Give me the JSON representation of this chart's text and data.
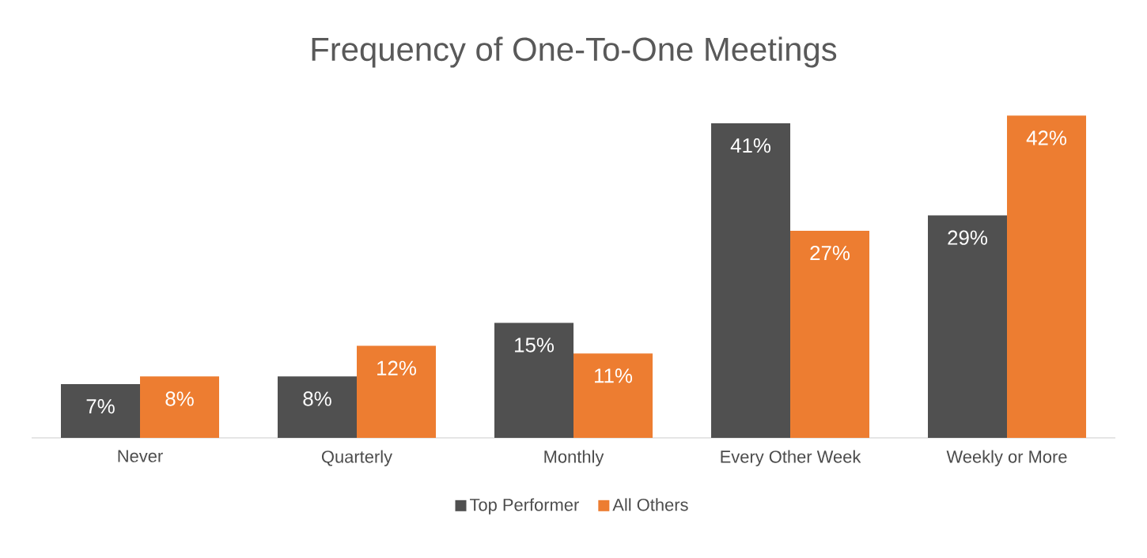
{
  "chart_data": {
    "type": "bar",
    "title": "Frequency of One-To-One Meetings",
    "categories": [
      "Never",
      "Quarterly",
      "Monthly",
      "Every Other Week",
      "Weekly or More"
    ],
    "series": [
      {
        "name": "Top Performer",
        "color": "#505050",
        "values": [
          7,
          8,
          15,
          41,
          29
        ],
        "value_labels": [
          "7%",
          "8%",
          "15%",
          "41%",
          "29%"
        ]
      },
      {
        "name": "All Others",
        "color": "#ed7d31",
        "values": [
          8,
          12,
          11,
          27,
          42
        ],
        "value_labels": [
          "8%",
          "12%",
          "11%",
          "27%",
          "42%"
        ]
      }
    ],
    "legend": "bottom"
  }
}
